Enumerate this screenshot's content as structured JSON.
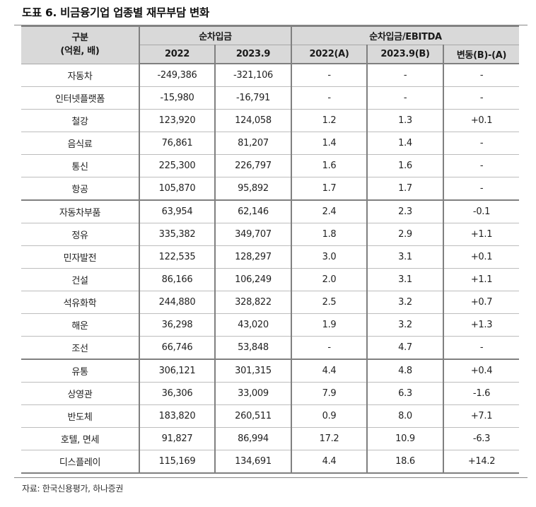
{
  "title": "도표 6. 비금융기업 업종별 재무부담 변화",
  "header": {
    "category": "구분",
    "category_unit": "(억원, 배)",
    "group1": "순차입금",
    "group2": "순차입금/EBITDA",
    "sub": [
      "2022",
      "2023.9",
      "2022(A)",
      "2023.9(B)",
      "변동(B)-(A)"
    ]
  },
  "rows": [
    {
      "name": "자동차",
      "debt_2022": "-249,386",
      "debt_2023_9": "-321,106",
      "ratio_2022": "-",
      "ratio_2023_9": "-",
      "change": "-"
    },
    {
      "name": "인터넷플랫폼",
      "debt_2022": "-15,980",
      "debt_2023_9": "-16,791",
      "ratio_2022": "-",
      "ratio_2023_9": "-",
      "change": "-"
    },
    {
      "name": "철강",
      "debt_2022": "123,920",
      "debt_2023_9": "124,058",
      "ratio_2022": "1.2",
      "ratio_2023_9": "1.3",
      "change": "+0.1"
    },
    {
      "name": "음식료",
      "debt_2022": "76,861",
      "debt_2023_9": "81,207",
      "ratio_2022": "1.4",
      "ratio_2023_9": "1.4",
      "change": "-"
    },
    {
      "name": "통신",
      "debt_2022": "225,300",
      "debt_2023_9": "226,797",
      "ratio_2022": "1.6",
      "ratio_2023_9": "1.6",
      "change": "-"
    },
    {
      "name": "항공",
      "debt_2022": "105,870",
      "debt_2023_9": "95,892",
      "ratio_2022": "1.7",
      "ratio_2023_9": "1.7",
      "change": "-"
    },
    {
      "name": "자동차부품",
      "debt_2022": "63,954",
      "debt_2023_9": "62,146",
      "ratio_2022": "2.4",
      "ratio_2023_9": "2.3",
      "change": "-0.1"
    },
    {
      "name": "정유",
      "debt_2022": "335,382",
      "debt_2023_9": "349,707",
      "ratio_2022": "1.8",
      "ratio_2023_9": "2.9",
      "change": "+1.1"
    },
    {
      "name": "민자발전",
      "debt_2022": "122,535",
      "debt_2023_9": "128,297",
      "ratio_2022": "3.0",
      "ratio_2023_9": "3.1",
      "change": "+0.1"
    },
    {
      "name": "건설",
      "debt_2022": "86,166",
      "debt_2023_9": "106,249",
      "ratio_2022": "2.0",
      "ratio_2023_9": "3.1",
      "change": "+1.1"
    },
    {
      "name": "석유화학",
      "debt_2022": "244,880",
      "debt_2023_9": "328,822",
      "ratio_2022": "2.5",
      "ratio_2023_9": "3.2",
      "change": "+0.7"
    },
    {
      "name": "해운",
      "debt_2022": "36,298",
      "debt_2023_9": "43,020",
      "ratio_2022": "1.9",
      "ratio_2023_9": "3.2",
      "change": "+1.3"
    },
    {
      "name": "조선",
      "debt_2022": "66,746",
      "debt_2023_9": "53,848",
      "ratio_2022": "-",
      "ratio_2023_9": "4.7",
      "change": "-"
    },
    {
      "name": "유통",
      "debt_2022": "306,121",
      "debt_2023_9": "301,315",
      "ratio_2022": "4.4",
      "ratio_2023_9": "4.8",
      "change": "+0.4"
    },
    {
      "name": "상영관",
      "debt_2022": "36,306",
      "debt_2023_9": "33,009",
      "ratio_2022": "7.9",
      "ratio_2023_9": "6.3",
      "change": "-1.6"
    },
    {
      "name": "반도체",
      "debt_2022": "183,820",
      "debt_2023_9": "260,511",
      "ratio_2022": "0.9",
      "ratio_2023_9": "8.0",
      "change": "+7.1"
    },
    {
      "name": "호텔, 면세",
      "debt_2022": "91,827",
      "debt_2023_9": "86,994",
      "ratio_2022": "17.2",
      "ratio_2023_9": "10.9",
      "change": "-6.3"
    },
    {
      "name": "디스플레이",
      "debt_2022": "115,169",
      "debt_2023_9": "134,691",
      "ratio_2022": "4.4",
      "ratio_2023_9": "18.6",
      "change": "+14.2"
    }
  ],
  "source": "자료: 한국신용평가, 하나증권"
}
